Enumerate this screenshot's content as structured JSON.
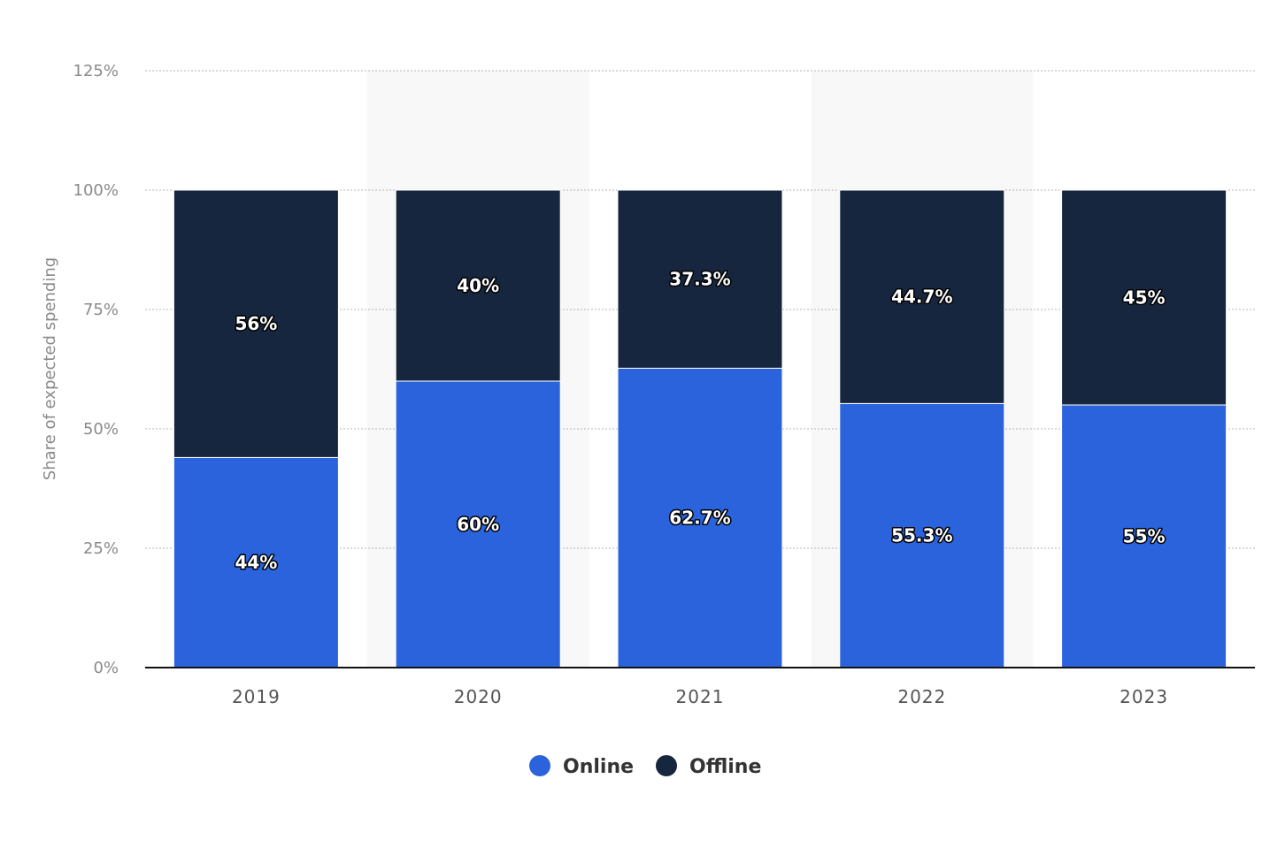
{
  "chart_data": {
    "type": "bar",
    "stacked": true,
    "categories": [
      "2019",
      "2020",
      "2021",
      "2022",
      "2023"
    ],
    "series": [
      {
        "name": "Online",
        "values": [
          44,
          60,
          62.7,
          55.3,
          55
        ],
        "labels": [
          "44%",
          "60%",
          "62.7%",
          "55.3%",
          "55%"
        ],
        "color": "#2b63dc"
      },
      {
        "name": "Offline",
        "values": [
          56,
          40,
          37.3,
          44.7,
          45
        ],
        "labels": [
          "56%",
          "40%",
          "37.3%",
          "44.7%",
          "45%"
        ],
        "color": "#17263f"
      }
    ],
    "ylabel": "Share of expected spending",
    "xlabel": "",
    "ylim": [
      0,
      125
    ],
    "yticks": [
      0,
      25,
      50,
      75,
      100,
      125
    ],
    "ytick_labels": [
      "0%",
      "25%",
      "50%",
      "75%",
      "100%",
      "125%"
    ],
    "grid": true,
    "legend_position": "bottom-center",
    "alternate_band_color": "#f8f8f8"
  }
}
